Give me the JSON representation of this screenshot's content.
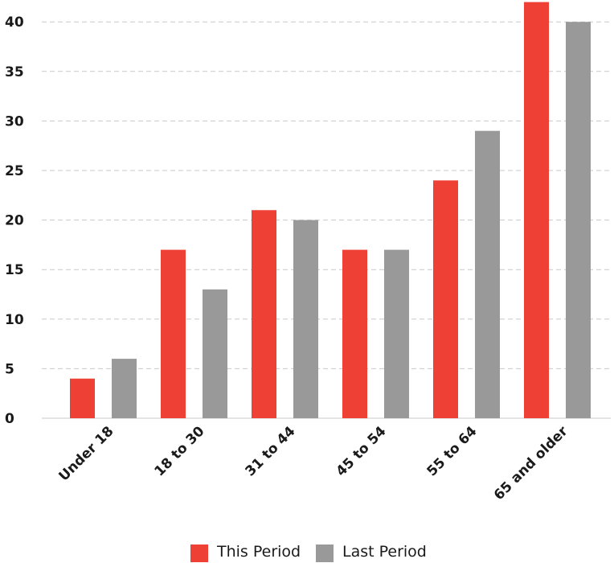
{
  "chart_data": {
    "type": "bar",
    "categories": [
      "Under 18",
      "18 to 30",
      "31 to 44",
      "45 to 54",
      "55 to 64",
      "65 and older"
    ],
    "series": [
      {
        "name": "This Period",
        "color": "#ee4035",
        "values": [
          4,
          17,
          21,
          17,
          24,
          42
        ]
      },
      {
        "name": "Last Period",
        "color": "#999999",
        "values": [
          6,
          13,
          20,
          17,
          29,
          40
        ]
      }
    ],
    "yticks": [
      "0",
      "5",
      "10",
      "15",
      "20",
      "25",
      "30",
      "35",
      "40"
    ],
    "ylim": [
      0,
      42
    ],
    "grid": true,
    "legend_position": "bottom"
  }
}
